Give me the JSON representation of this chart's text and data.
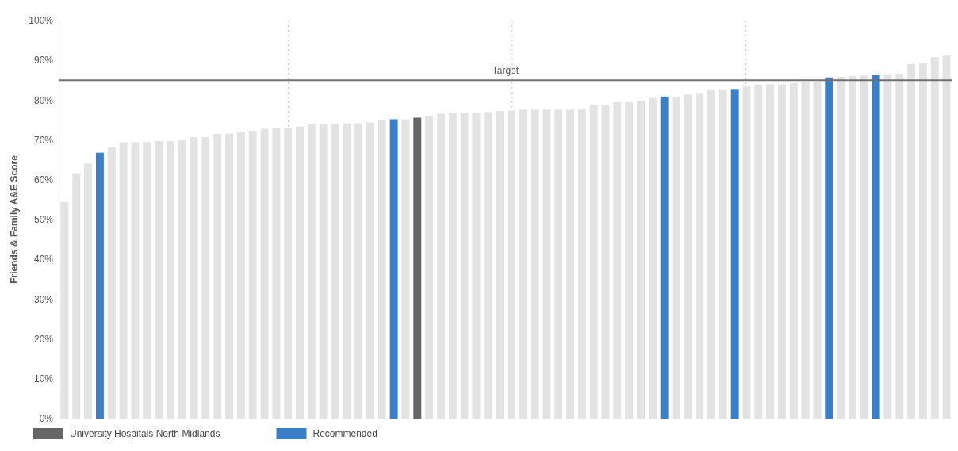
{
  "chart_data": {
    "type": "bar",
    "ylabel": "Friends & Family A&E Score",
    "categories": [
      null,
      null,
      null,
      null,
      null,
      null,
      null,
      null,
      null,
      null,
      null,
      null,
      null,
      null,
      null,
      null,
      null,
      null,
      null,
      null,
      null,
      null,
      null,
      null,
      null,
      null,
      null,
      null,
      null,
      null,
      null,
      null,
      null,
      null,
      null,
      null,
      null,
      null,
      null,
      null,
      null,
      null,
      null,
      null,
      null,
      null,
      null,
      null,
      null,
      null,
      null,
      null,
      null,
      null,
      null,
      null,
      null,
      null,
      null,
      null,
      null,
      null,
      null,
      null,
      null,
      null,
      null,
      null,
      null,
      null,
      null,
      null,
      null,
      null,
      null,
      null
    ],
    "series": [
      {
        "color": "#e3e3e3",
        "values": [
          54.4,
          61.6,
          64.1,
          null,
          68.2,
          69.4,
          69.4,
          69.5,
          69.7,
          69.7,
          70.1,
          70.7,
          70.7,
          71.5,
          71.6,
          72.0,
          72.3,
          72.8,
          73.0,
          73.1,
          73.4,
          73.9,
          74.0,
          74.0,
          74.2,
          74.2,
          74.4,
          74.9,
          null,
          75.2,
          null,
          76.1,
          76.6,
          76.7,
          76.8,
          76.8,
          77.0,
          77.3,
          77.4,
          77.6,
          77.6,
          77.6,
          77.6,
          77.6,
          77.8,
          78.8,
          78.8,
          79.5,
          79.5,
          79.8,
          80.6,
          null,
          80.9,
          81.4,
          81.8,
          82.7,
          82.7,
          null,
          83.4,
          83.9,
          84.0,
          84.0,
          84.3,
          84.6,
          84.7,
          null,
          85.9,
          86.1,
          86.2,
          null,
          86.5,
          86.7,
          89.1,
          89.4,
          90.8,
          91.2
        ]
      },
      {
        "name": "University Hospitals North Midlands",
        "color": "#666666",
        "values": [
          null,
          null,
          null,
          null,
          null,
          null,
          null,
          null,
          null,
          null,
          null,
          null,
          null,
          null,
          null,
          null,
          null,
          null,
          null,
          null,
          null,
          null,
          null,
          null,
          null,
          null,
          null,
          null,
          null,
          null,
          75.6,
          null,
          null,
          null,
          null,
          null,
          null,
          null,
          null,
          null,
          null,
          null,
          null,
          null,
          null,
          null,
          null,
          null,
          null,
          null,
          null,
          null,
          null,
          null,
          null,
          null,
          null,
          null,
          null,
          null,
          null,
          null,
          null,
          null,
          null,
          null,
          null,
          null,
          null,
          null,
          null,
          null,
          null,
          null,
          null,
          null
        ]
      },
      {
        "name": "Recommended",
        "color": "#3a7fc8",
        "values": [
          null,
          null,
          null,
          66.8,
          null,
          null,
          null,
          null,
          null,
          null,
          null,
          null,
          null,
          null,
          null,
          null,
          null,
          null,
          null,
          null,
          null,
          null,
          null,
          null,
          null,
          null,
          null,
          null,
          75.2,
          null,
          null,
          null,
          null,
          null,
          null,
          null,
          null,
          null,
          null,
          null,
          null,
          null,
          null,
          null,
          null,
          null,
          null,
          null,
          null,
          null,
          null,
          80.9,
          null,
          null,
          null,
          null,
          null,
          82.8,
          null,
          null,
          null,
          null,
          null,
          null,
          null,
          85.7,
          null,
          null,
          null,
          86.3,
          null,
          null,
          null,
          null,
          null,
          null
        ]
      }
    ],
    "ylim": [
      0,
      100
    ],
    "yticks": [
      {
        "value": 0,
        "label": "0%"
      },
      {
        "value": 10,
        "label": "10%"
      },
      {
        "value": 20,
        "label": "20%"
      },
      {
        "value": 30,
        "label": "30%"
      },
      {
        "value": 40,
        "label": "40%"
      },
      {
        "value": 50,
        "label": "50%"
      },
      {
        "value": 60,
        "label": "60%"
      },
      {
        "value": 70,
        "label": "70%"
      },
      {
        "value": 80,
        "label": "80%"
      },
      {
        "value": 90,
        "label": "90%"
      },
      {
        "value": 100,
        "label": "100%"
      }
    ],
    "ref_lines": [
      {
        "axis": "y",
        "value": 85,
        "label": "Target",
        "color": "#707070",
        "line_style": "solid"
      }
    ],
    "grid": "x",
    "legend": "bottom left"
  }
}
